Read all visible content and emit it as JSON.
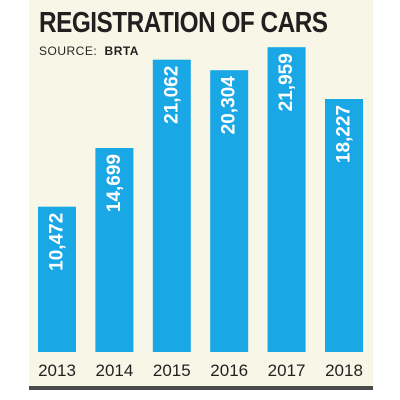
{
  "chart_data": {
    "type": "bar",
    "title": "REGISTRATION OF CARS",
    "source_label": "SOURCE:",
    "source_value": "BRTA",
    "categories": [
      "2013",
      "2014",
      "2015",
      "2016",
      "2017",
      "2018"
    ],
    "values": [
      10472,
      14699,
      21062,
      20304,
      21959,
      18227
    ],
    "value_labels": [
      "10,472",
      "14,699",
      "21,062",
      "20,304",
      "21,959",
      "18,227"
    ],
    "xlabel": "",
    "ylabel": "",
    "ylim": [
      0,
      23200
    ],
    "grid": false,
    "legend": "none",
    "bar_color": "#1aa7e6"
  }
}
